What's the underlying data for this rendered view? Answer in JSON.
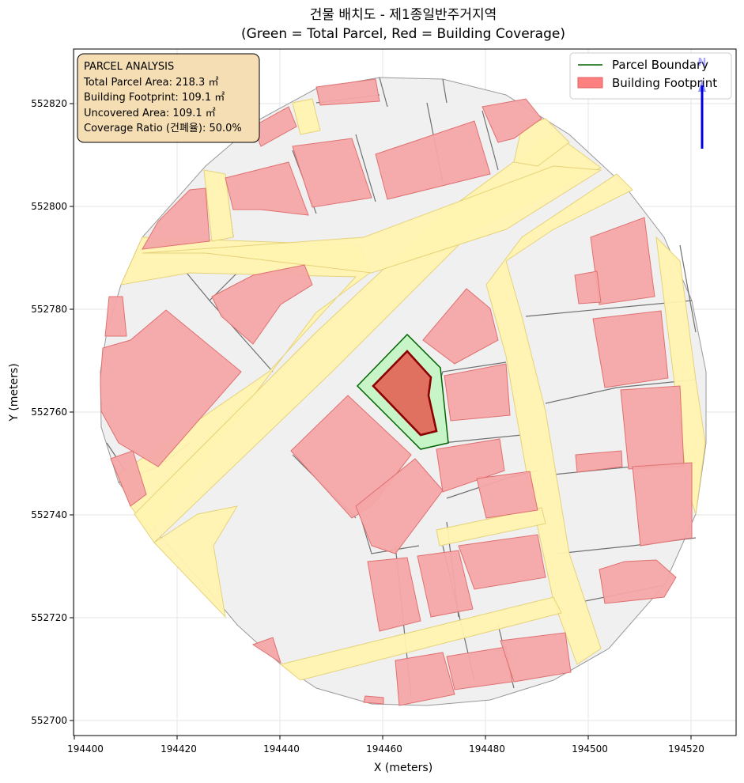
{
  "title_line1": "건물 배치도 - 제1종일반주거지역",
  "title_line2": "(Green = Total Parcel, Red = Building Coverage)",
  "x_axis": {
    "label": "X (meters)",
    "ticks": [
      "194400",
      "194420",
      "194440",
      "194460",
      "194480",
      "194500",
      "194520"
    ]
  },
  "y_axis": {
    "label": "Y (meters)",
    "ticks": [
      "552700",
      "552720",
      "552740",
      "552760",
      "552780",
      "552800",
      "552820"
    ]
  },
  "info_box": {
    "heading": "PARCEL ANALYSIS",
    "total_parcel_area": "Total Parcel Area: 218.3 ㎡",
    "building_footprint": "Building Footprint: 109.1 ㎡",
    "uncovered_area": "Uncovered Area: 109.1 ㎡",
    "coverage_ratio": "Coverage Ratio (건폐율): 50.0%"
  },
  "legend": {
    "parcel_boundary": "Parcel Boundary",
    "building_footprint": "Building Footprint"
  },
  "north_arrow": {
    "label": "N"
  },
  "colors": {
    "parcel_edge": "#006400",
    "parcel_fill": "#c8f5c8",
    "target_building_fill": "#e07060",
    "target_building_edge": "#8b0000",
    "building_fill": "#f4a6a8",
    "building_edge": "#e06060",
    "road_fill": "#fff3b0",
    "road_edge": "#e8d880",
    "neighbor_parcel_fill": "#f0f0f0",
    "neighbor_parcel_edge": "#707070",
    "north_arrow": "#0000dd"
  }
}
